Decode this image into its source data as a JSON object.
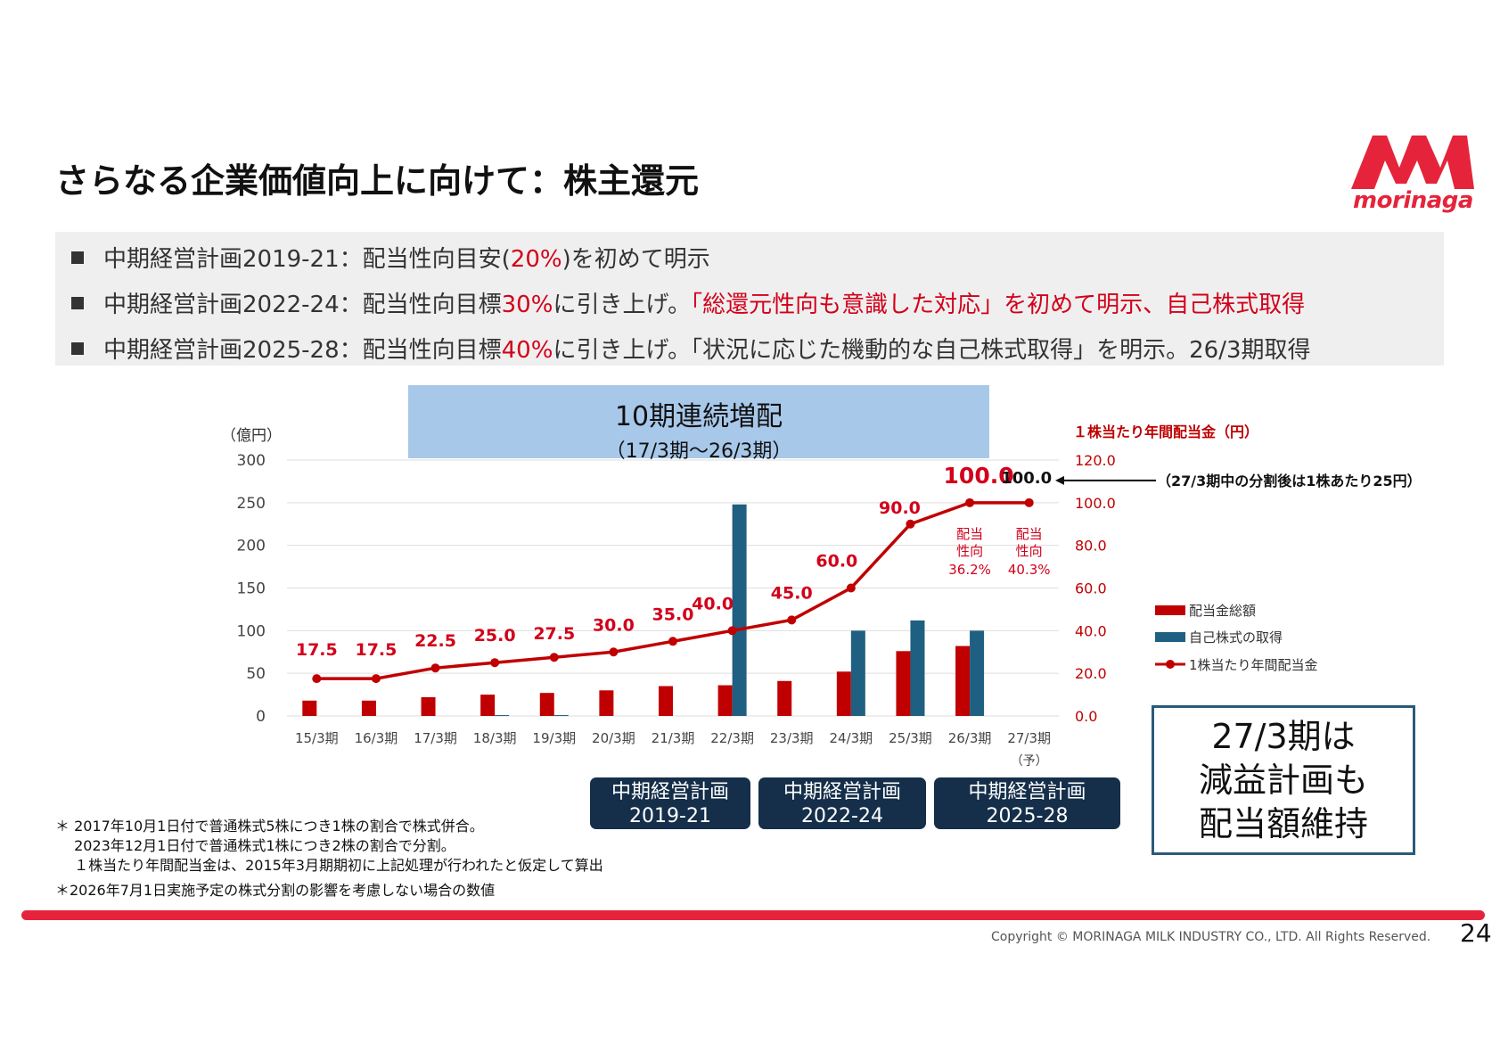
{
  "title": "さらなる企業価値向上に向けて：株主還元",
  "logo": {
    "text": "morinaga"
  },
  "bullets": [
    {
      "prefix": "中期経営計画2019-21：配当性向目安(",
      "highlight": "20%",
      "suffix": ")を初めて明示"
    },
    {
      "prefix": "中期経営計画2022-24：配当性向目標",
      "highlight": "30%",
      "middle": "に引き上げ。",
      "highlight2": "「総還元性向も意識した対応」を初めて明示、自己株式取得"
    },
    {
      "prefix": "中期経営計画2025-28：配当性向目標",
      "highlight": "40%",
      "suffix": "に引き上げ。「状況に応じた機動的な自己株式取得」を明示。26/3期取得"
    }
  ],
  "banner": {
    "line1": "10期連続増配",
    "line2": "（17/3期～26/3期）"
  },
  "chart_data": {
    "type": "bar",
    "categories": [
      "15/3期",
      "16/3期",
      "17/3期",
      "18/3期",
      "19/3期",
      "20/3期",
      "21/3期",
      "22/3期",
      "23/3期",
      "24/3期",
      "25/3期",
      "26/3期",
      "27/3期"
    ],
    "category_note": "（予）",
    "left_axis": {
      "unit": "（億円）",
      "ylim": [
        0,
        300
      ],
      "ticks": [
        "300",
        "250",
        "200",
        "150",
        "100",
        "50",
        "0"
      ]
    },
    "right_axis": {
      "label": "１株当たり年間配当金（円）",
      "ylim": [
        0,
        120
      ],
      "ticks": [
        "120.0",
        "100.0",
        "80.0",
        "60.0",
        "40.0",
        "20.0",
        "0.0"
      ]
    },
    "series": [
      {
        "name": "配当金総額",
        "axis": "left",
        "color": "#c00000",
        "values": [
          18,
          18,
          22,
          25,
          27,
          30,
          35,
          36,
          41,
          52,
          76,
          82,
          null
        ]
      },
      {
        "name": "自己株式の取得",
        "axis": "left",
        "color": "#1f5f82",
        "values": [
          0,
          0,
          0,
          1,
          1,
          0,
          0,
          248,
          0,
          100,
          112,
          100,
          null
        ]
      },
      {
        "name": "1株当たり年間配当金",
        "axis": "right",
        "color": "#c00000",
        "type": "line",
        "values": [
          17.5,
          17.5,
          22.5,
          25.0,
          27.5,
          30.0,
          35.0,
          40.0,
          45.0,
          60.0,
          90.0,
          100.0,
          100.0
        ],
        "labels": [
          "17.5",
          "17.5",
          "22.5",
          "25.0",
          "27.5",
          "30.0",
          "35.0",
          "40.0",
          "45.0",
          "60.0",
          "90.0",
          "100.0",
          "100.0"
        ]
      }
    ],
    "payout_annotations": [
      {
        "category": "26/3期",
        "line1": "配当",
        "line2": "性向",
        "value": "36.2%"
      },
      {
        "category": "27/3期",
        "line1": "配当",
        "line2": "性向",
        "value": "40.3%"
      }
    ],
    "split_note": "（27/3期中の分割後は1株あたり25円）",
    "grid": true,
    "legend_position": "right"
  },
  "plans": [
    {
      "line1": "中期経営計画",
      "line2": "2019-21"
    },
    {
      "line1": "中期経営計画",
      "line2": "2022-24"
    },
    {
      "line1": "中期経営計画",
      "line2": "2025-28"
    }
  ],
  "callout": {
    "line1": "27/3期は",
    "line2": "減益計画も",
    "line3": "配当額維持"
  },
  "notes": [
    "＊ 2017年10月1日付で普通株式5株につき1株の割合で株式併合。",
    "　 2023年12月1日付で普通株式1株につき2株の割合で分割。",
    "　 １株当たり年間配当金は、2015年3月期期初に上記処理が行われたと仮定して算出",
    "＊2026年7月1日実施予定の株式分割の影響を考慮しない場合の数値"
  ],
  "footer": {
    "copyright": "Copyright © MORINAGA MILK INDUSTRY CO., LTD. All Rights Reserved.",
    "page": "24"
  }
}
